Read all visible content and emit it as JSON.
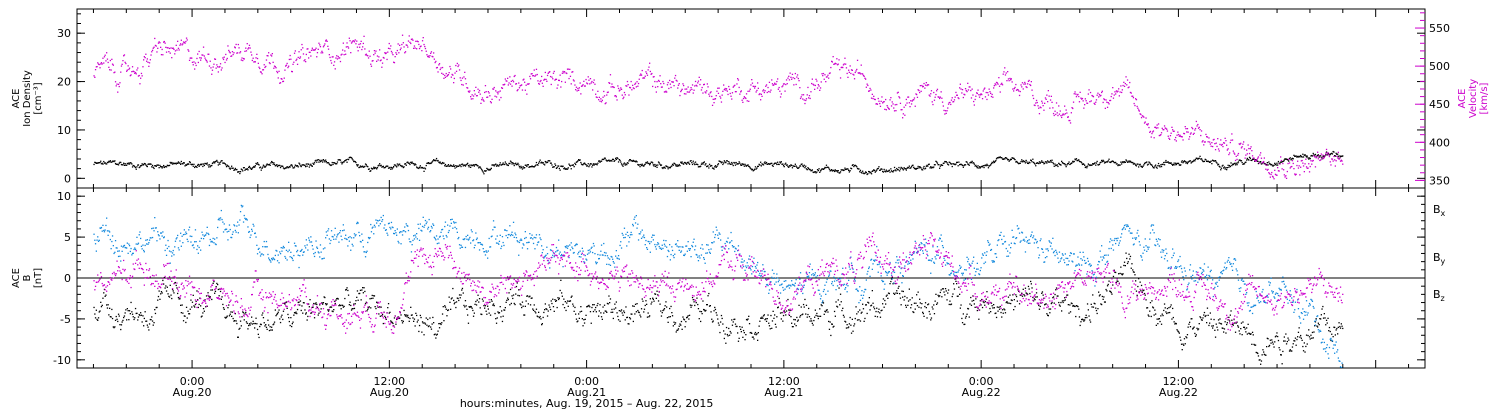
{
  "colors": {
    "black": "#000000",
    "magenta": "#cc00cc",
    "blue": "#1188dd"
  },
  "chart_data": [
    {
      "type": "scatter",
      "name": "ace-density-velocity",
      "ylabel_left": [
        "ACE",
        "Ion Density",
        "[cm⁻³]"
      ],
      "ylabel_right": [
        "ACE",
        "Velocity",
        "[km/s]"
      ],
      "left_ylim": [
        -2,
        35
      ],
      "left_yticks": [
        0,
        10,
        20,
        30
      ],
      "right_ylim": [
        340,
        575
      ],
      "right_yticks": [
        350,
        400,
        450,
        500,
        550
      ],
      "series": [
        {
          "axis": "left",
          "color": "black",
          "x": [
            -6,
            -3,
            0,
            3,
            6,
            9,
            12,
            15,
            18,
            21,
            24,
            27,
            30,
            33,
            36,
            39,
            42,
            45,
            48,
            51,
            54,
            57,
            60,
            63,
            66,
            68,
            70
          ],
          "y": [
            3,
            3,
            3,
            2.5,
            2.5,
            3,
            3,
            3,
            2.5,
            3,
            3,
            3,
            3,
            3,
            3,
            2,
            2,
            2.5,
            3,
            3,
            3,
            3,
            3.5,
            3.5,
            4,
            5,
            5
          ]
        },
        {
          "axis": "right",
          "color": "magenta",
          "x": [
            -6,
            -4,
            -2,
            0,
            2,
            4,
            6,
            8,
            10,
            12,
            14,
            16,
            18,
            20,
            22,
            24,
            26,
            28,
            30,
            32,
            34,
            36,
            38,
            40,
            42,
            44,
            46,
            48,
            50,
            52,
            54,
            56,
            58,
            60,
            62,
            64,
            66,
            68,
            70
          ],
          "y": [
            495,
            490,
            520,
            510,
            520,
            525,
            500,
            520,
            530,
            505,
            530,
            490,
            470,
            480,
            475,
            485,
            470,
            480,
            470,
            470,
            475,
            470,
            480,
            490,
            470,
            468,
            460,
            460,
            470,
            455,
            450,
            480,
            430,
            415,
            400,
            390,
            385,
            370,
            380
          ]
        }
      ]
    },
    {
      "type": "scatter",
      "name": "ace-imf",
      "ylabel_left": [
        "ACE",
        "B",
        "[nT]"
      ],
      "ylim": [
        -11,
        11
      ],
      "yticks": [
        -10,
        -5,
        0,
        5,
        10
      ],
      "legend": [
        "Bx",
        "By",
        "Bz"
      ],
      "zero_line": true,
      "series": [
        {
          "name": "Bx",
          "color": "black",
          "x": [
            -6,
            -3,
            0,
            3,
            6,
            9,
            12,
            15,
            18,
            21,
            24,
            27,
            30,
            33,
            36,
            39,
            42,
            45,
            48,
            51,
            54,
            57,
            60,
            63,
            66,
            68,
            70
          ],
          "y": [
            -3,
            -4,
            -3,
            -5,
            -5,
            -3,
            -4,
            -6,
            -3,
            -2,
            -4,
            -4,
            -4,
            -4,
            -5,
            -4,
            -3,
            -3,
            -2,
            -3,
            -4,
            0,
            -5,
            -6,
            -7,
            -6,
            -7
          ]
        },
        {
          "name": "By",
          "color": "blue",
          "x": [
            -6,
            -3,
            0,
            3,
            6,
            9,
            12,
            15,
            18,
            21,
            24,
            27,
            30,
            33,
            36,
            39,
            42,
            45,
            48,
            51,
            54,
            57,
            60,
            63,
            66,
            68,
            70
          ],
          "y": [
            6,
            5,
            4,
            6,
            4,
            5,
            6,
            5,
            6,
            5,
            3,
            5,
            3,
            4,
            -2,
            0,
            1,
            3,
            2,
            4,
            1,
            5,
            1,
            -1,
            -2,
            -4,
            -10
          ]
        },
        {
          "name": "Bz",
          "color": "magenta",
          "x": [
            -6,
            -3,
            0,
            3,
            6,
            9,
            12,
            15,
            18,
            21,
            24,
            27,
            30,
            33,
            36,
            39,
            42,
            45,
            48,
            51,
            54,
            57,
            60,
            63,
            66,
            68,
            70
          ],
          "y": [
            -1,
            2,
            -1,
            -3,
            -2,
            -4,
            -3,
            4,
            -2,
            1,
            2,
            -1,
            -1,
            2,
            -2,
            1,
            2,
            3,
            -1,
            -3,
            1,
            -2,
            0,
            -3,
            -2,
            -1,
            -2
          ]
        }
      ]
    }
  ],
  "x_axis": {
    "range_hours": [
      -7,
      75
    ],
    "major_ticks": [
      {
        "hour": 0,
        "time": "0:00",
        "date": "Aug.20"
      },
      {
        "hour": 12,
        "time": "12:00",
        "date": "Aug.20"
      },
      {
        "hour": 24,
        "time": "0:00",
        "date": "Aug.21"
      },
      {
        "hour": 36,
        "time": "12:00",
        "date": "Aug.21"
      },
      {
        "hour": 48,
        "time": "0:00",
        "date": "Aug.22"
      },
      {
        "hour": 60,
        "time": "12:00",
        "date": "Aug.22"
      }
    ],
    "xlabel": "hours:minutes, Aug. 19, 2015 – Aug. 22, 2015"
  }
}
